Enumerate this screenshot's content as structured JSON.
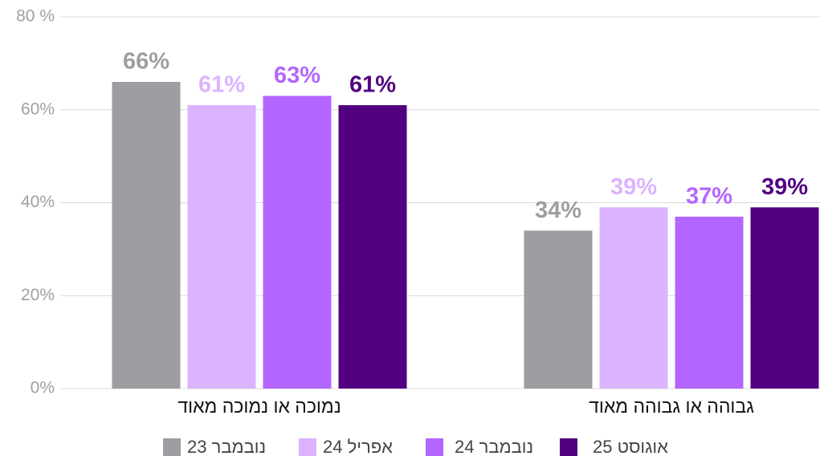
{
  "chart_data": {
    "type": "bar",
    "categories": [
      "נמוכה או נמוכה מאוד",
      "גבוהה או גבוהה מאוד"
    ],
    "series": [
      {
        "name": "נובמבר 23",
        "color": "#9e9ea2",
        "values": [
          66,
          34
        ],
        "value_labels": [
          "66%",
          "34%"
        ]
      },
      {
        "name": "אפריל 24",
        "color": "#dcb3ff",
        "values": [
          61,
          39
        ],
        "value_labels": [
          "61%",
          "39%"
        ]
      },
      {
        "name": "נובמבר 24",
        "color": "#b366ff",
        "values": [
          63,
          37
        ],
        "value_labels": [
          "63%",
          "37%"
        ]
      },
      {
        "name": "אוגוסט 25",
        "color": "#520080",
        "values": [
          61,
          39
        ],
        "value_labels": [
          "61%",
          "39%"
        ]
      }
    ],
    "ylim": [
      0,
      80
    ],
    "yticks": [
      {
        "value": 0,
        "label": "0%"
      },
      {
        "value": 20,
        "label": "20%"
      },
      {
        "value": 40,
        "label": "40%"
      },
      {
        "value": 60,
        "label": "60%"
      },
      {
        "value": 80,
        "label": "80 %"
      }
    ],
    "grid": true,
    "legend": "bottom"
  }
}
